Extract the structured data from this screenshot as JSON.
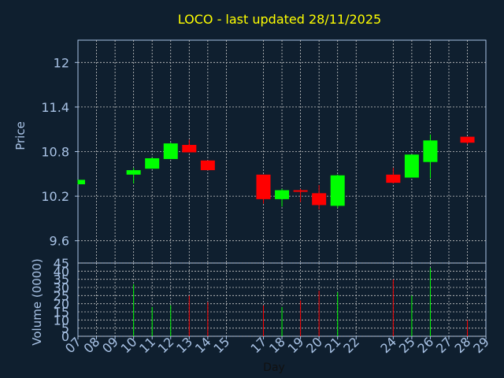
{
  "title": "LOCO - last updated 28/11/2025",
  "colors": {
    "background": "#0f1f2f",
    "title": "#ffff00",
    "axis": "#a9c3e6",
    "grid": "#c8c8c8",
    "up": "#00ff00",
    "down": "#ff0000"
  },
  "chart_data": [
    {
      "type": "candlestick",
      "ylabel": "Price",
      "ylim": [
        9.3,
        12.3
      ],
      "yticks": [
        "9.6",
        "10.2",
        "10.8",
        "11.4",
        "12"
      ],
      "grid": true,
      "x": [
        "07",
        "10",
        "11",
        "12",
        "13",
        "14",
        "17",
        "18",
        "19",
        "20",
        "21",
        "24",
        "25",
        "26",
        "28"
      ],
      "ohlc": [
        {
          "day": "07",
          "open": 10.36,
          "high": 10.42,
          "low": 10.36,
          "close": 10.42
        },
        {
          "day": "10",
          "open": 10.49,
          "high": 10.58,
          "low": 10.37,
          "close": 10.55
        },
        {
          "day": "11",
          "open": 10.57,
          "high": 10.72,
          "low": 10.57,
          "close": 10.71
        },
        {
          "day": "12",
          "open": 10.7,
          "high": 10.92,
          "low": 10.7,
          "close": 10.91
        },
        {
          "day": "13",
          "open": 10.89,
          "high": 10.96,
          "low": 10.79,
          "close": 10.79
        },
        {
          "day": "14",
          "open": 10.68,
          "high": 10.68,
          "low": 10.55,
          "close": 10.55
        },
        {
          "day": "17",
          "open": 10.49,
          "high": 10.49,
          "low": 10.1,
          "close": 10.16
        },
        {
          "day": "18",
          "open": 10.16,
          "high": 10.3,
          "low": 10.06,
          "close": 10.28
        },
        {
          "day": "19",
          "open": 10.28,
          "high": 10.3,
          "low": 10.12,
          "close": 10.26
        },
        {
          "day": "20",
          "open": 10.24,
          "high": 10.35,
          "low": 10.02,
          "close": 10.08
        },
        {
          "day": "21",
          "open": 10.07,
          "high": 10.49,
          "low": 10.04,
          "close": 10.48
        },
        {
          "day": "24",
          "open": 10.49,
          "high": 10.58,
          "low": 10.37,
          "close": 10.38
        },
        {
          "day": "25",
          "open": 10.45,
          "high": 10.76,
          "low": 10.45,
          "close": 10.76
        },
        {
          "day": "26",
          "open": 10.66,
          "high": 11.03,
          "low": 10.44,
          "close": 10.95
        },
        {
          "day": "28",
          "open": 11.0,
          "high": 11.0,
          "low": 10.9,
          "close": 10.92
        }
      ]
    },
    {
      "type": "bar",
      "ylabel": "Volume (0000)",
      "xlabel": "Day",
      "ylim": [
        0,
        45
      ],
      "yticks": [
        "0",
        "5",
        "10",
        "15",
        "20",
        "25",
        "30",
        "35",
        "40",
        "45"
      ],
      "categories": [
        "07",
        "08",
        "09",
        "10",
        "11",
        "12",
        "13",
        "14",
        "15",
        "17",
        "18",
        "19",
        "20",
        "21",
        "22",
        "24",
        "25",
        "26",
        "27",
        "28",
        "29"
      ],
      "bars": [
        {
          "day": "10",
          "value": 32,
          "dir": "up"
        },
        {
          "day": "11",
          "value": 18,
          "dir": "up"
        },
        {
          "day": "12",
          "value": 19,
          "dir": "up"
        },
        {
          "day": "13",
          "value": 25,
          "dir": "down"
        },
        {
          "day": "14",
          "value": 21,
          "dir": "down"
        },
        {
          "day": "17",
          "value": 19,
          "dir": "down"
        },
        {
          "day": "18",
          "value": 18,
          "dir": "up"
        },
        {
          "day": "19",
          "value": 22,
          "dir": "down"
        },
        {
          "day": "20",
          "value": 28,
          "dir": "down"
        },
        {
          "day": "21",
          "value": 27,
          "dir": "up"
        },
        {
          "day": "24",
          "value": 35,
          "dir": "down"
        },
        {
          "day": "25",
          "value": 25,
          "dir": "up"
        },
        {
          "day": "26",
          "value": 42,
          "dir": "up"
        },
        {
          "day": "28",
          "value": 10,
          "dir": "down"
        }
      ]
    }
  ]
}
